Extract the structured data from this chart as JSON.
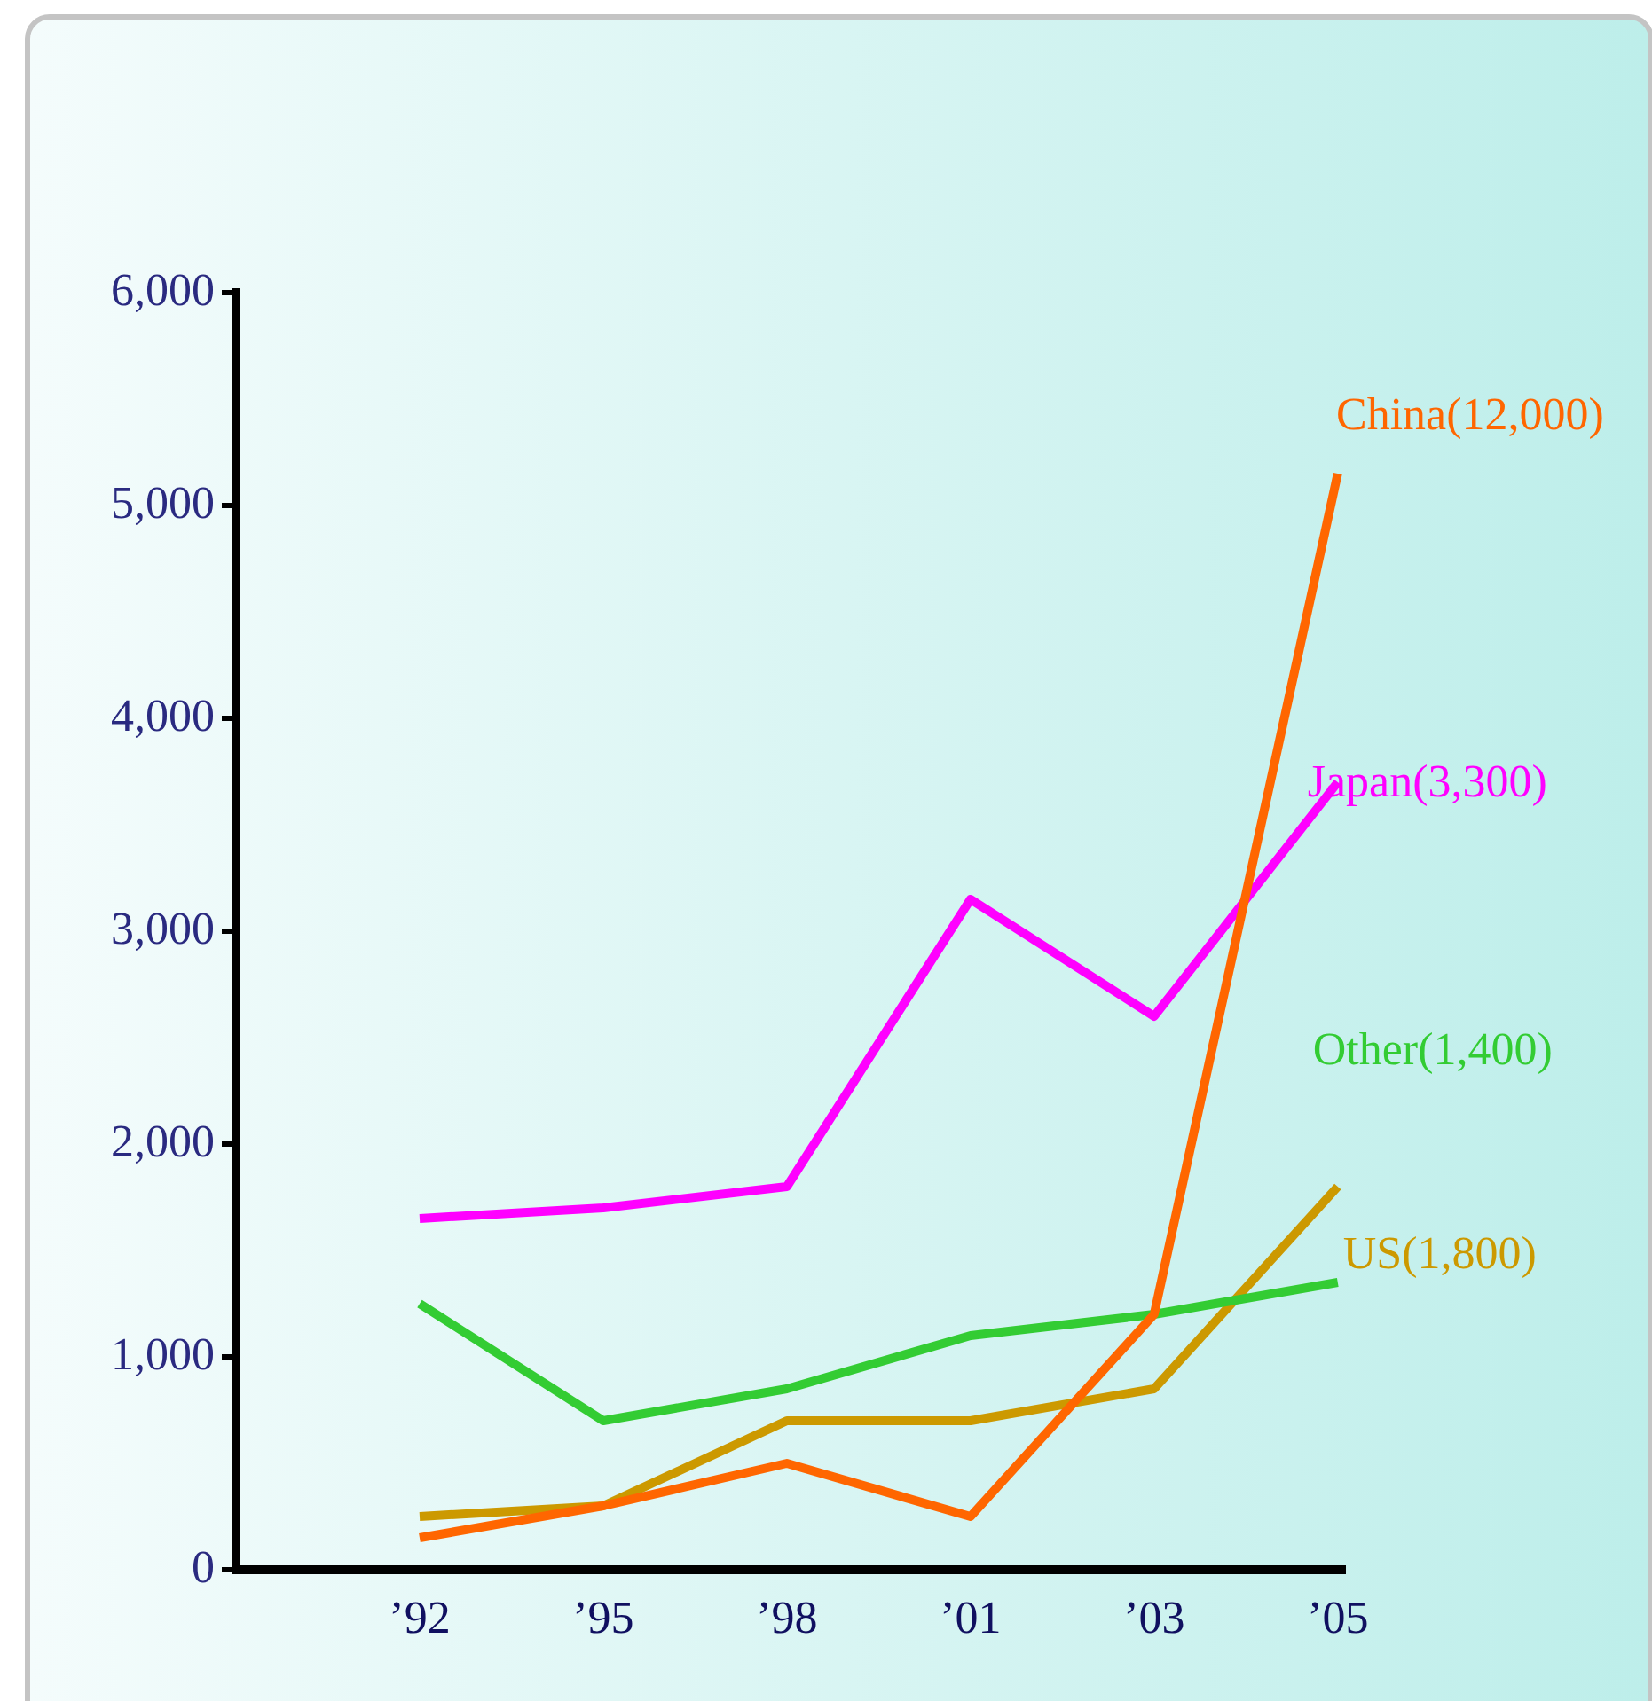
{
  "chart_data": {
    "type": "line",
    "categories": [
      "’92",
      "’95",
      "’98",
      "’01",
      "’03",
      "’05"
    ],
    "series": [
      {
        "name": "China(12,000)",
        "color": "#ff6600",
        "values": [
          150,
          300,
          500,
          250,
          1200,
          5150
        ]
      },
      {
        "name": "Japan(3,300)",
        "color": "#ff00ff",
        "values": [
          1650,
          1700,
          1800,
          3150,
          2600,
          3700
        ]
      },
      {
        "name": "Other(1,400)",
        "color": "#33cc33",
        "values": [
          1250,
          700,
          850,
          1100,
          1200,
          1350
        ]
      },
      {
        "name": "US(1,800)",
        "color": "#cc9900",
        "values": [
          250,
          300,
          700,
          700,
          850,
          1800
        ]
      }
    ],
    "ylim": [
      0,
      6000
    ],
    "yticks": [
      0,
      {
        "value": 1000,
        "label": "1,000"
      },
      {
        "value": 2000,
        "label": "2,000"
      },
      {
        "value": 3000,
        "label": "3,000"
      },
      {
        "value": 4000,
        "label": "4,000"
      },
      {
        "value": 5000,
        "label": "5,000"
      },
      {
        "value": 6000,
        "label": "6,000"
      }
    ],
    "grid": false,
    "legend": false,
    "marker": "none",
    "line_style": "solid"
  }
}
